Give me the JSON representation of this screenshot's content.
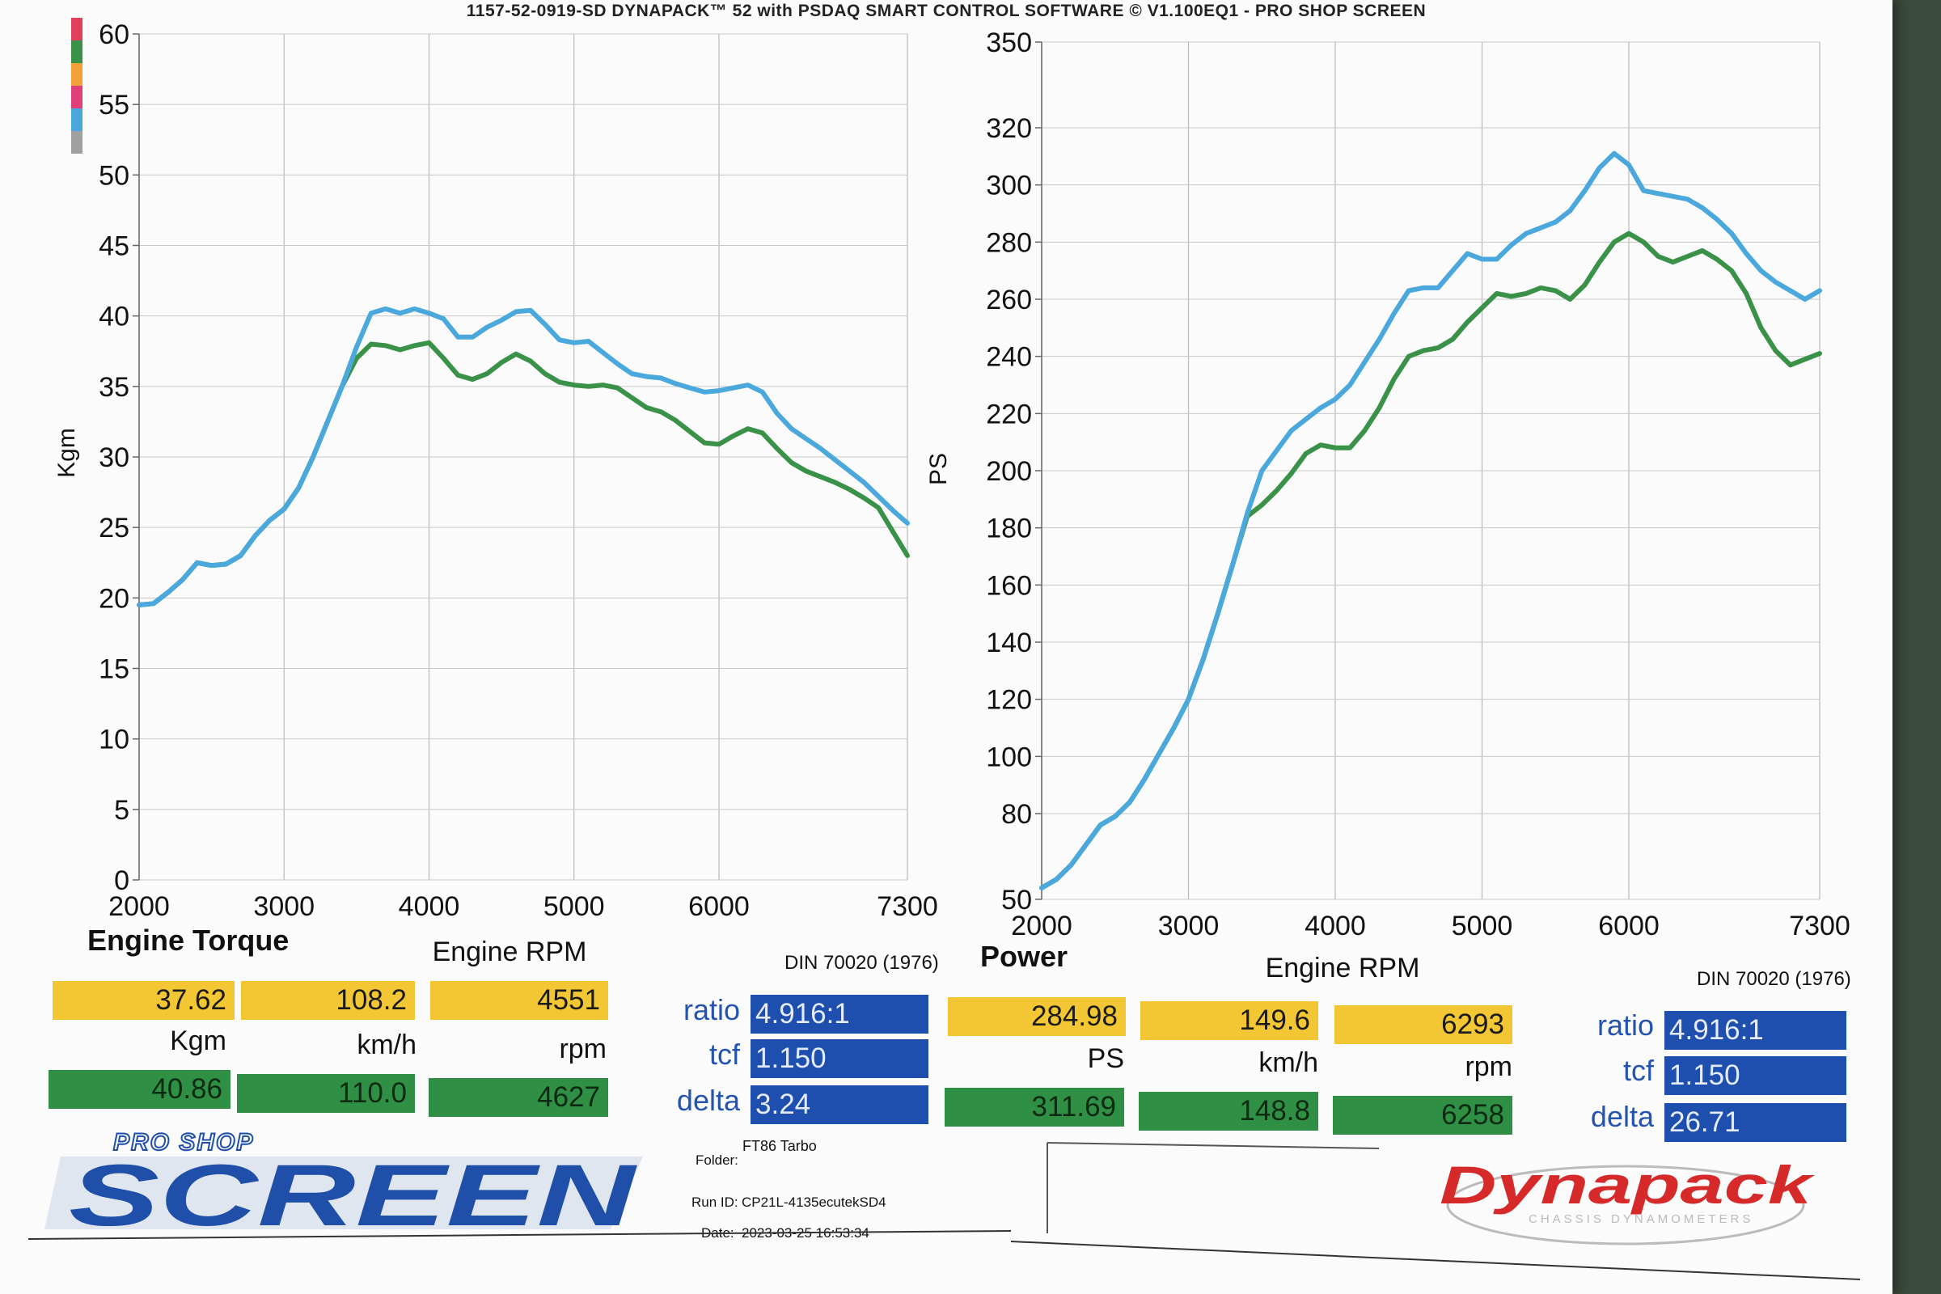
{
  "header": "1157-52-0919-SD DYNAPACK™ 52 with PSDAQ SMART CONTROL SOFTWARE © V1.100EQ1 - PRO SHOP SCREEN",
  "colors": {
    "series_run1": "#4aa8dc",
    "series_run2": "#3a9148",
    "yellow_box": "#f2c733",
    "green_box": "#2f8f45",
    "blue_box": "#1e4fae",
    "swatches": [
      "#e0405a",
      "#3a9148",
      "#f2a23a",
      "#e0407a",
      "#4aa8dc",
      "#a0a0a0"
    ]
  },
  "chart_data": [
    {
      "type": "line",
      "title": "Engine Torque",
      "xlabel": "Engine RPM",
      "ylabel": "Kgm",
      "standard": "DIN 70020 (1976)",
      "xlim": [
        2000,
        7300
      ],
      "ylim": [
        0,
        60
      ],
      "xticks": [
        2000,
        3000,
        4000,
        5000,
        6000,
        7300
      ],
      "yticks": [
        0,
        5,
        10,
        15,
        20,
        25,
        30,
        35,
        40,
        45,
        50,
        55,
        60
      ],
      "grid": true,
      "series": [
        {
          "color": "#4aa8dc",
          "x": [
            2000,
            2100,
            2200,
            2300,
            2400,
            2500,
            2600,
            2700,
            2800,
            2900,
            3000,
            3100,
            3200,
            3300,
            3400,
            3500,
            3600,
            3700,
            3800,
            3900,
            4000,
            4100,
            4200,
            4300,
            4400,
            4500,
            4600,
            4700,
            4800,
            4900,
            5000,
            5100,
            5200,
            5300,
            5400,
            5500,
            5600,
            5700,
            5800,
            5900,
            6000,
            6100,
            6200,
            6300,
            6400,
            6500,
            6600,
            6700,
            6800,
            6900,
            7000,
            7100,
            7200,
            7300
          ],
          "y": [
            19.5,
            19.6,
            20.4,
            21.3,
            22.5,
            22.3,
            22.4,
            23.0,
            24.4,
            25.5,
            26.3,
            27.8,
            30.0,
            32.5,
            35.0,
            37.8,
            40.2,
            40.5,
            40.2,
            40.5,
            40.2,
            39.8,
            38.5,
            38.5,
            39.2,
            39.7,
            40.3,
            40.4,
            39.4,
            38.3,
            38.1,
            38.2,
            37.4,
            36.6,
            35.9,
            35.7,
            35.6,
            35.2,
            34.9,
            34.6,
            34.7,
            34.9,
            35.1,
            34.6,
            33.1,
            32.0,
            31.3,
            30.6,
            29.8,
            29.0,
            28.2,
            27.2,
            26.2,
            25.3
          ]
        },
        {
          "color": "#3a9148",
          "x": [
            2000,
            2100,
            2200,
            2300,
            2400,
            2500,
            2600,
            2700,
            2800,
            2900,
            3000,
            3100,
            3200,
            3300,
            3400,
            3500,
            3600,
            3700,
            3800,
            3900,
            4000,
            4100,
            4200,
            4300,
            4400,
            4500,
            4600,
            4700,
            4800,
            4900,
            5000,
            5100,
            5200,
            5300,
            5400,
            5500,
            5600,
            5700,
            5800,
            5900,
            6000,
            6100,
            6200,
            6300,
            6400,
            6500,
            6600,
            6700,
            6800,
            6900,
            7000,
            7100,
            7200,
            7300
          ],
          "y": [
            19.5,
            19.6,
            20.4,
            21.3,
            22.5,
            22.3,
            22.4,
            23.0,
            24.4,
            25.5,
            26.3,
            27.8,
            30.0,
            32.5,
            35.0,
            37.0,
            38.0,
            37.9,
            37.6,
            37.9,
            38.1,
            37.0,
            35.8,
            35.5,
            35.9,
            36.7,
            37.3,
            36.8,
            35.9,
            35.3,
            35.1,
            35.0,
            35.1,
            34.9,
            34.2,
            33.5,
            33.2,
            32.6,
            31.8,
            31.0,
            30.9,
            31.5,
            32.0,
            31.7,
            30.6,
            29.6,
            29.0,
            28.6,
            28.2,
            27.7,
            27.1,
            26.4,
            24.7,
            23.0
          ]
        }
      ]
    },
    {
      "type": "line",
      "title": "Power",
      "xlabel": "Engine RPM",
      "ylabel": "PS",
      "standard": "DIN 70020 (1976)",
      "xlim": [
        2000,
        7300
      ],
      "ylim": [
        50,
        350
      ],
      "xticks": [
        2000,
        3000,
        4000,
        5000,
        6000,
        7300
      ],
      "yticks": [
        50,
        80,
        100,
        120,
        140,
        160,
        180,
        200,
        220,
        240,
        260,
        280,
        300,
        320,
        350
      ],
      "grid": true,
      "series": [
        {
          "color": "#4aa8dc",
          "x": [
            2000,
            2100,
            2200,
            2300,
            2400,
            2500,
            2600,
            2700,
            2800,
            2900,
            3000,
            3100,
            3200,
            3300,
            3400,
            3500,
            3600,
            3700,
            3800,
            3900,
            4000,
            4100,
            4200,
            4300,
            4400,
            4500,
            4600,
            4700,
            4800,
            4900,
            5000,
            5100,
            5200,
            5300,
            5400,
            5500,
            5600,
            5700,
            5800,
            5900,
            6000,
            6100,
            6200,
            6300,
            6400,
            6500,
            6600,
            6700,
            6800,
            6900,
            7000,
            7100,
            7200,
            7300
          ],
          "y": [
            54,
            57,
            62,
            69,
            76,
            79,
            84,
            92,
            101,
            110,
            120,
            134,
            150,
            167,
            185,
            200,
            207,
            214,
            218,
            222,
            225,
            230,
            238,
            246,
            255,
            263,
            264,
            264,
            270,
            276,
            274,
            274,
            279,
            283,
            285,
            287,
            291,
            298,
            306,
            311,
            307,
            298,
            297,
            296,
            295,
            292,
            288,
            283,
            276,
            270,
            266,
            263,
            260,
            263
          ]
        },
        {
          "color": "#3a9148",
          "x": [
            2000,
            2100,
            2200,
            2300,
            2400,
            2500,
            2600,
            2700,
            2800,
            2900,
            3000,
            3100,
            3200,
            3300,
            3400,
            3500,
            3600,
            3700,
            3800,
            3900,
            4000,
            4100,
            4200,
            4300,
            4400,
            4500,
            4600,
            4700,
            4800,
            4900,
            5000,
            5100,
            5200,
            5300,
            5400,
            5500,
            5600,
            5700,
            5800,
            5900,
            6000,
            6100,
            6200,
            6300,
            6400,
            6500,
            6600,
            6700,
            6800,
            6900,
            7000,
            7100,
            7200,
            7300
          ],
          "y": [
            54,
            57,
            62,
            69,
            76,
            79,
            84,
            92,
            101,
            110,
            120,
            134,
            150,
            167,
            184,
            188,
            193,
            199,
            206,
            209,
            208,
            208,
            214,
            222,
            232,
            240,
            242,
            243,
            246,
            252,
            257,
            262,
            261,
            262,
            264,
            263,
            260,
            265,
            273,
            280,
            283,
            280,
            275,
            273,
            275,
            277,
            274,
            270,
            262,
            250,
            242,
            237,
            239,
            241
          ]
        }
      ]
    }
  ],
  "left_panel": {
    "caption_title": "Engine Torque",
    "caption_x": "Engine RPM",
    "standard": "DIN 70020 (1976)",
    "run1": {
      "a": "37.62",
      "b": "108.2",
      "c": "4551"
    },
    "units": {
      "a": "Kgm",
      "b": "km/h",
      "c": "rpm"
    },
    "run2": {
      "a": "40.86",
      "b": "110.0",
      "c": "4627"
    }
  },
  "mid_params": {
    "ratio_label": "ratio",
    "ratio": "4.916:1",
    "tcf_label": "tcf",
    "tcf": "1.150",
    "delta_label": "delta",
    "delta": "3.24"
  },
  "right_panel": {
    "caption_title": "Power",
    "caption_x": "Engine RPM",
    "standard": "DIN 70020 (1976)",
    "run1": {
      "a": "284.98",
      "b": "149.6",
      "c": "6293"
    },
    "units": {
      "a": "PS",
      "b": "km/h",
      "c": "rpm"
    },
    "run2": {
      "a": "311.69",
      "b": "148.8",
      "c": "6258"
    }
  },
  "right_params": {
    "ratio_label": "ratio",
    "ratio": "4.916:1",
    "tcf_label": "tcf",
    "tcf": "1.150",
    "delta_label": "delta",
    "delta": "26.71"
  },
  "meta": {
    "folder_label": "Folder:",
    "folder": "FT86 Tarbo",
    "runid_label": "Run ID:",
    "runid": "CP21L-4135ecutekSD4",
    "date_label": "Date:",
    "date": "2023-03-25 16:53:34"
  },
  "logos": {
    "left_small": "PRO SHOP",
    "left_big": "SCREEN",
    "right_big": "Dynapack",
    "right_small": "CHASSIS DYNAMOMETERS"
  }
}
